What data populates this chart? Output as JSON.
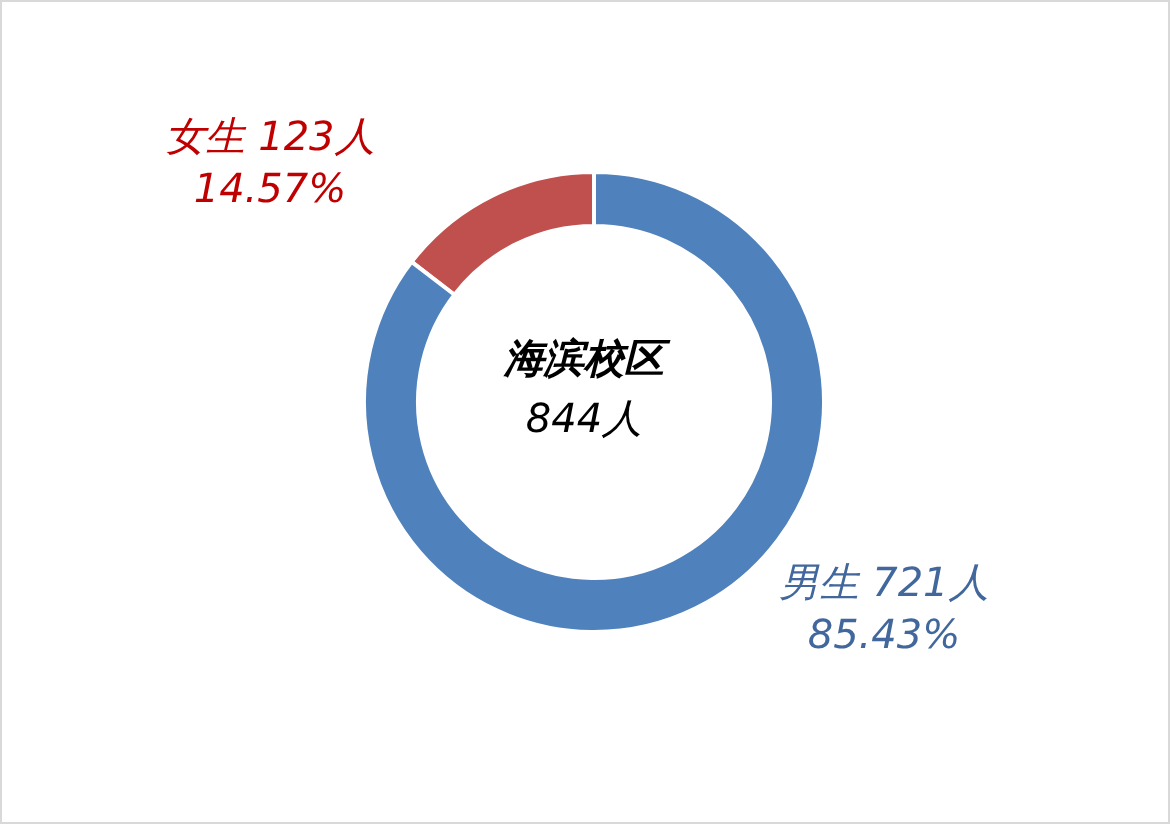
{
  "chart_data": {
    "type": "donut",
    "title": "海滨校区",
    "annotations": [
      "844人"
    ],
    "categories": [
      "女生",
      "男生"
    ],
    "values": [
      123,
      721
    ],
    "colors": [
      "#c0504d",
      "#4f81bd"
    ],
    "value_labels": [
      "123人\n14.57%",
      "721人\n85.43%"
    ],
    "legend": false
  }
}
